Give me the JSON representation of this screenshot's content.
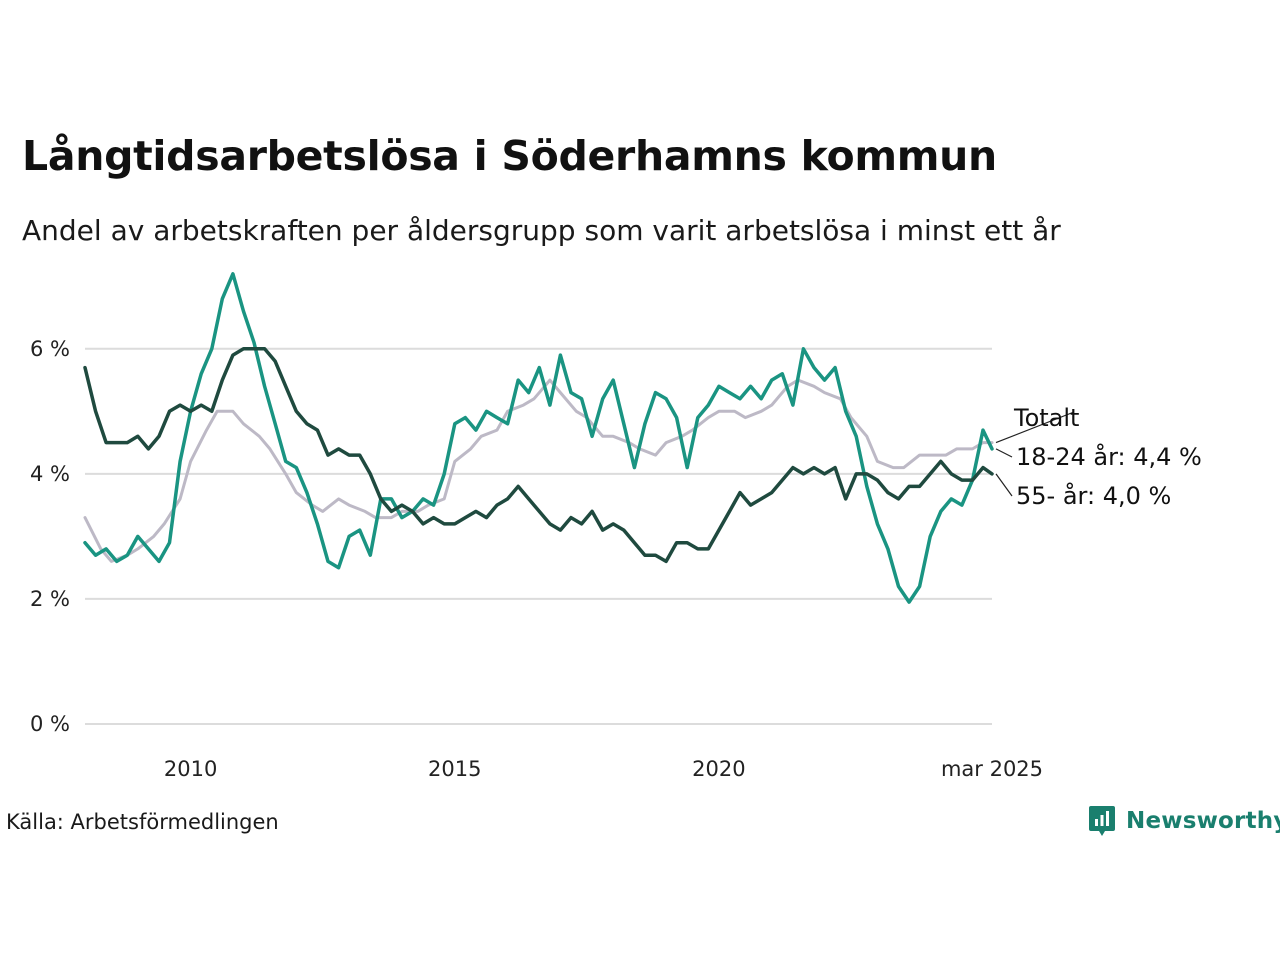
{
  "title": "Långtidsarbetslösa i Söderhamns kommun",
  "subtitle": "Andel av arbetskraften per åldersgrupp som varit arbetslösa i minst ett år",
  "source": "Källa: Arbetsförmedlingen",
  "brand": {
    "name": "Newsworthy",
    "icon": "newsworthy-logo-icon",
    "color": "#1a7f6e"
  },
  "chart_data": {
    "type": "line",
    "xlabel": "",
    "ylabel": "",
    "ylim": [
      0,
      7.5
    ],
    "xlim": [
      2008.0,
      2025.17
    ],
    "grid": true,
    "legend": "direct labels at line ends",
    "y_ticks": [
      0,
      2,
      4,
      6
    ],
    "y_tick_labels": [
      "0 %",
      "2 %",
      "4 %",
      "6 %"
    ],
    "x_ticks": [
      2010,
      2015,
      2020,
      2025.17
    ],
    "x_tick_labels": [
      "2010",
      "2015",
      "2020",
      "mar 2025"
    ],
    "series": [
      {
        "name": "Totalt",
        "label": "Totalt",
        "color": "#bdb9c6",
        "points": [
          [
            2008.0,
            3.3
          ],
          [
            2008.3,
            2.8
          ],
          [
            2008.5,
            2.6
          ],
          [
            2008.8,
            2.7
          ],
          [
            2009.0,
            2.8
          ],
          [
            2009.3,
            3.0
          ],
          [
            2009.5,
            3.2
          ],
          [
            2009.8,
            3.6
          ],
          [
            2010.0,
            4.2
          ],
          [
            2010.3,
            4.7
          ],
          [
            2010.5,
            5.0
          ],
          [
            2010.8,
            5.0
          ],
          [
            2011.0,
            4.8
          ],
          [
            2011.3,
            4.6
          ],
          [
            2011.5,
            4.4
          ],
          [
            2011.8,
            4.0
          ],
          [
            2012.0,
            3.7
          ],
          [
            2012.3,
            3.5
          ],
          [
            2012.5,
            3.4
          ],
          [
            2012.8,
            3.6
          ],
          [
            2013.0,
            3.5
          ],
          [
            2013.3,
            3.4
          ],
          [
            2013.5,
            3.3
          ],
          [
            2013.8,
            3.3
          ],
          [
            2014.0,
            3.4
          ],
          [
            2014.3,
            3.4
          ],
          [
            2014.5,
            3.5
          ],
          [
            2014.8,
            3.6
          ],
          [
            2015.0,
            4.2
          ],
          [
            2015.3,
            4.4
          ],
          [
            2015.5,
            4.6
          ],
          [
            2015.8,
            4.7
          ],
          [
            2016.0,
            5.0
          ],
          [
            2016.3,
            5.1
          ],
          [
            2016.5,
            5.2
          ],
          [
            2016.8,
            5.5
          ],
          [
            2017.0,
            5.3
          ],
          [
            2017.3,
            5.0
          ],
          [
            2017.5,
            4.9
          ],
          [
            2017.8,
            4.6
          ],
          [
            2018.0,
            4.6
          ],
          [
            2018.3,
            4.5
          ],
          [
            2018.5,
            4.4
          ],
          [
            2018.8,
            4.3
          ],
          [
            2019.0,
            4.5
          ],
          [
            2019.3,
            4.6
          ],
          [
            2019.5,
            4.7
          ],
          [
            2019.8,
            4.9
          ],
          [
            2020.0,
            5.0
          ],
          [
            2020.3,
            5.0
          ],
          [
            2020.5,
            4.9
          ],
          [
            2020.8,
            5.0
          ],
          [
            2021.0,
            5.1
          ],
          [
            2021.3,
            5.4
          ],
          [
            2021.5,
            5.5
          ],
          [
            2021.8,
            5.4
          ],
          [
            2022.0,
            5.3
          ],
          [
            2022.3,
            5.2
          ],
          [
            2022.5,
            4.9
          ],
          [
            2022.8,
            4.6
          ],
          [
            2023.0,
            4.2
          ],
          [
            2023.3,
            4.1
          ],
          [
            2023.5,
            4.1
          ],
          [
            2023.8,
            4.3
          ],
          [
            2024.0,
            4.3
          ],
          [
            2024.3,
            4.3
          ],
          [
            2024.5,
            4.4
          ],
          [
            2024.8,
            4.4
          ],
          [
            2025.0,
            4.5
          ],
          [
            2025.17,
            4.5
          ]
        ]
      },
      {
        "name": "18-24 år",
        "label": "18-24 år: 4,4 %",
        "color": "#1a9482",
        "points": [
          [
            2008.0,
            2.9
          ],
          [
            2008.2,
            2.7
          ],
          [
            2008.4,
            2.8
          ],
          [
            2008.6,
            2.6
          ],
          [
            2008.8,
            2.7
          ],
          [
            2009.0,
            3.0
          ],
          [
            2009.2,
            2.8
          ],
          [
            2009.4,
            2.6
          ],
          [
            2009.6,
            2.9
          ],
          [
            2009.8,
            4.2
          ],
          [
            2010.0,
            5.0
          ],
          [
            2010.2,
            5.6
          ],
          [
            2010.4,
            6.0
          ],
          [
            2010.6,
            6.8
          ],
          [
            2010.8,
            7.2
          ],
          [
            2011.0,
            6.6
          ],
          [
            2011.2,
            6.1
          ],
          [
            2011.4,
            5.4
          ],
          [
            2011.6,
            4.8
          ],
          [
            2011.8,
            4.2
          ],
          [
            2012.0,
            4.1
          ],
          [
            2012.2,
            3.7
          ],
          [
            2012.4,
            3.2
          ],
          [
            2012.6,
            2.6
          ],
          [
            2012.8,
            2.5
          ],
          [
            2013.0,
            3.0
          ],
          [
            2013.2,
            3.1
          ],
          [
            2013.4,
            2.7
          ],
          [
            2013.6,
            3.6
          ],
          [
            2013.8,
            3.6
          ],
          [
            2014.0,
            3.3
          ],
          [
            2014.2,
            3.4
          ],
          [
            2014.4,
            3.6
          ],
          [
            2014.6,
            3.5
          ],
          [
            2014.8,
            4.0
          ],
          [
            2015.0,
            4.8
          ],
          [
            2015.2,
            4.9
          ],
          [
            2015.4,
            4.7
          ],
          [
            2015.6,
            5.0
          ],
          [
            2015.8,
            4.9
          ],
          [
            2016.0,
            4.8
          ],
          [
            2016.2,
            5.5
          ],
          [
            2016.4,
            5.3
          ],
          [
            2016.6,
            5.7
          ],
          [
            2016.8,
            5.1
          ],
          [
            2017.0,
            5.9
          ],
          [
            2017.2,
            5.3
          ],
          [
            2017.4,
            5.2
          ],
          [
            2017.6,
            4.6
          ],
          [
            2017.8,
            5.2
          ],
          [
            2018.0,
            5.5
          ],
          [
            2018.2,
            4.8
          ],
          [
            2018.4,
            4.1
          ],
          [
            2018.6,
            4.8
          ],
          [
            2018.8,
            5.3
          ],
          [
            2019.0,
            5.2
          ],
          [
            2019.2,
            4.9
          ],
          [
            2019.4,
            4.1
          ],
          [
            2019.6,
            4.9
          ],
          [
            2019.8,
            5.1
          ],
          [
            2020.0,
            5.4
          ],
          [
            2020.2,
            5.3
          ],
          [
            2020.4,
            5.2
          ],
          [
            2020.6,
            5.4
          ],
          [
            2020.8,
            5.2
          ],
          [
            2021.0,
            5.5
          ],
          [
            2021.2,
            5.6
          ],
          [
            2021.4,
            5.1
          ],
          [
            2021.6,
            6.0
          ],
          [
            2021.8,
            5.7
          ],
          [
            2022.0,
            5.5
          ],
          [
            2022.2,
            5.7
          ],
          [
            2022.4,
            5.0
          ],
          [
            2022.6,
            4.6
          ],
          [
            2022.8,
            3.8
          ],
          [
            2023.0,
            3.2
          ],
          [
            2023.2,
            2.8
          ],
          [
            2023.4,
            2.2
          ],
          [
            2023.6,
            1.95
          ],
          [
            2023.8,
            2.2
          ],
          [
            2024.0,
            3.0
          ],
          [
            2024.2,
            3.4
          ],
          [
            2024.4,
            3.6
          ],
          [
            2024.6,
            3.5
          ],
          [
            2024.8,
            3.9
          ],
          [
            2025.0,
            4.7
          ],
          [
            2025.17,
            4.4
          ]
        ]
      },
      {
        "name": "55- år",
        "label": "55- år: 4,0 %",
        "color": "#1f4a3f",
        "points": [
          [
            2008.0,
            5.7
          ],
          [
            2008.2,
            5.0
          ],
          [
            2008.4,
            4.5
          ],
          [
            2008.6,
            4.5
          ],
          [
            2008.8,
            4.5
          ],
          [
            2009.0,
            4.6
          ],
          [
            2009.2,
            4.4
          ],
          [
            2009.4,
            4.6
          ],
          [
            2009.6,
            5.0
          ],
          [
            2009.8,
            5.1
          ],
          [
            2010.0,
            5.0
          ],
          [
            2010.2,
            5.1
          ],
          [
            2010.4,
            5.0
          ],
          [
            2010.6,
            5.5
          ],
          [
            2010.8,
            5.9
          ],
          [
            2011.0,
            6.0
          ],
          [
            2011.2,
            6.0
          ],
          [
            2011.4,
            6.0
          ],
          [
            2011.6,
            5.8
          ],
          [
            2011.8,
            5.4
          ],
          [
            2012.0,
            5.0
          ],
          [
            2012.2,
            4.8
          ],
          [
            2012.4,
            4.7
          ],
          [
            2012.6,
            4.3
          ],
          [
            2012.8,
            4.4
          ],
          [
            2013.0,
            4.3
          ],
          [
            2013.2,
            4.3
          ],
          [
            2013.4,
            4.0
          ],
          [
            2013.6,
            3.6
          ],
          [
            2013.8,
            3.4
          ],
          [
            2014.0,
            3.5
          ],
          [
            2014.2,
            3.4
          ],
          [
            2014.4,
            3.2
          ],
          [
            2014.6,
            3.3
          ],
          [
            2014.8,
            3.2
          ],
          [
            2015.0,
            3.2
          ],
          [
            2015.2,
            3.3
          ],
          [
            2015.4,
            3.4
          ],
          [
            2015.6,
            3.3
          ],
          [
            2015.8,
            3.5
          ],
          [
            2016.0,
            3.6
          ],
          [
            2016.2,
            3.8
          ],
          [
            2016.4,
            3.6
          ],
          [
            2016.6,
            3.4
          ],
          [
            2016.8,
            3.2
          ],
          [
            2017.0,
            3.1
          ],
          [
            2017.2,
            3.3
          ],
          [
            2017.4,
            3.2
          ],
          [
            2017.6,
            3.4
          ],
          [
            2017.8,
            3.1
          ],
          [
            2018.0,
            3.2
          ],
          [
            2018.2,
            3.1
          ],
          [
            2018.4,
            2.9
          ],
          [
            2018.6,
            2.7
          ],
          [
            2018.8,
            2.7
          ],
          [
            2019.0,
            2.6
          ],
          [
            2019.2,
            2.9
          ],
          [
            2019.4,
            2.9
          ],
          [
            2019.6,
            2.8
          ],
          [
            2019.8,
            2.8
          ],
          [
            2020.0,
            3.1
          ],
          [
            2020.2,
            3.4
          ],
          [
            2020.4,
            3.7
          ],
          [
            2020.6,
            3.5
          ],
          [
            2020.8,
            3.6
          ],
          [
            2021.0,
            3.7
          ],
          [
            2021.2,
            3.9
          ],
          [
            2021.4,
            4.1
          ],
          [
            2021.6,
            4.0
          ],
          [
            2021.8,
            4.1
          ],
          [
            2022.0,
            4.0
          ],
          [
            2022.2,
            4.1
          ],
          [
            2022.4,
            3.6
          ],
          [
            2022.6,
            4.0
          ],
          [
            2022.8,
            4.0
          ],
          [
            2023.0,
            3.9
          ],
          [
            2023.2,
            3.7
          ],
          [
            2023.4,
            3.6
          ],
          [
            2023.6,
            3.8
          ],
          [
            2023.8,
            3.8
          ],
          [
            2024.0,
            4.0
          ],
          [
            2024.2,
            4.2
          ],
          [
            2024.4,
            4.0
          ],
          [
            2024.6,
            3.9
          ],
          [
            2024.8,
            3.9
          ],
          [
            2025.0,
            4.1
          ],
          [
            2025.17,
            4.0
          ]
        ]
      }
    ]
  }
}
